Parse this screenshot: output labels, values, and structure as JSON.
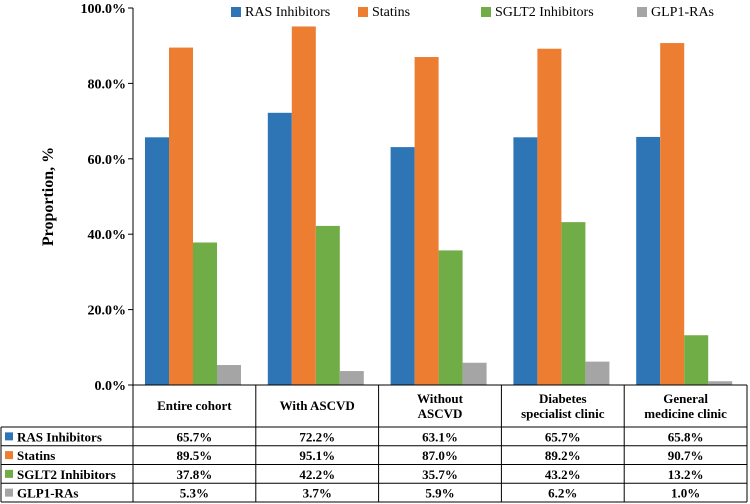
{
  "chart_data": {
    "type": "bar",
    "ylabel": "Proportion, %",
    "ylim": [
      0,
      100
    ],
    "yticks": [
      "0.0%",
      "20.0%",
      "40.0%",
      "60.0%",
      "80.0%",
      "100.0%"
    ],
    "legend_position": "top",
    "categories": [
      [
        "Entire cohort"
      ],
      [
        "With ASCVD"
      ],
      [
        "Without",
        "ASCVD"
      ],
      [
        "Diabetes",
        "specialist clinic"
      ],
      [
        "General",
        "medicine clinic"
      ]
    ],
    "series": [
      {
        "name": "RAS Inhibitors",
        "color": "#2E75B6",
        "values": [
          65.7,
          72.2,
          63.1,
          65.7,
          65.8
        ],
        "labels": [
          "65.7%",
          "72.2%",
          "63.1%",
          "65.7%",
          "65.8%"
        ]
      },
      {
        "name": "Statins",
        "color": "#ED7D31",
        "values": [
          89.5,
          95.1,
          87.0,
          89.2,
          90.7
        ],
        "labels": [
          "89.5%",
          "95.1%",
          "87.0%",
          "89.2%",
          "90.7%"
        ]
      },
      {
        "name": "SGLT2 Inhibitors",
        "color": "#70AD47",
        "values": [
          37.8,
          42.2,
          35.7,
          43.2,
          13.2
        ],
        "labels": [
          "37.8%",
          "42.2%",
          "35.7%",
          "43.2%",
          "13.2%"
        ]
      },
      {
        "name": "GLP1-RAs",
        "color": "#A5A5A5",
        "values": [
          5.3,
          3.7,
          5.9,
          6.2,
          1.0
        ],
        "labels": [
          "5.3%",
          "3.7%",
          "5.9%",
          "6.2%",
          "1.0%"
        ]
      }
    ]
  }
}
